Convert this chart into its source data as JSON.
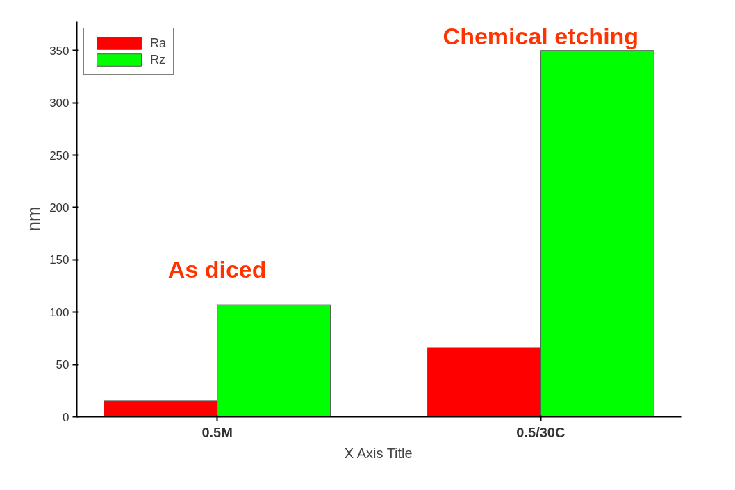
{
  "chart_data": {
    "type": "bar",
    "categories": [
      "0.5M",
      "0.5/30C"
    ],
    "xlabel": "X Axis Title",
    "ylabel": "nm",
    "series": [
      {
        "name": "Ra",
        "color": "#ff0000",
        "values": [
          15,
          66
        ]
      },
      {
        "name": "Rz",
        "color": "#00ff00",
        "values": [
          107,
          350
        ]
      }
    ],
    "ylim": [
      0,
      378
    ],
    "yticks": [
      0,
      50,
      100,
      150,
      200,
      250,
      300,
      350
    ],
    "grid": false,
    "legend": "top left",
    "annotations": [
      "As diced",
      "Chemical etching"
    ]
  }
}
